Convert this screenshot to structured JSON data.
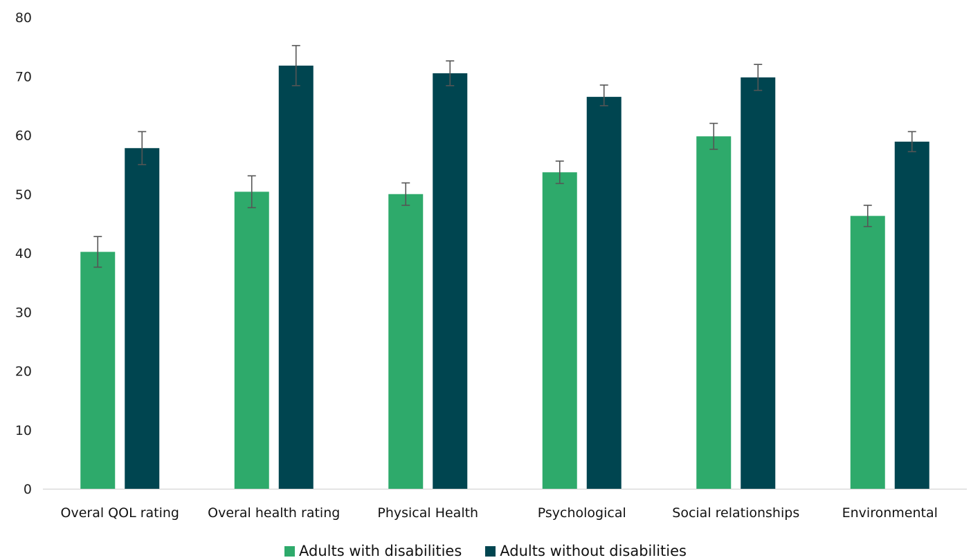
{
  "chart_data": {
    "type": "bar",
    "categories": [
      "Overal QOL rating",
      "Overal health rating",
      "Physical Health",
      "Psychological",
      "Social relationships",
      "Environmental"
    ],
    "series": [
      {
        "name": "Adults with disabilities",
        "color": "#2eaa6b",
        "values": [
          40.2,
          50.4,
          50.0,
          53.7,
          59.8,
          46.3
        ],
        "error_low": [
          37.6,
          47.7,
          48.1,
          51.8,
          57.6,
          44.5
        ],
        "error_high": [
          42.8,
          53.1,
          51.9,
          55.6,
          62.0,
          48.1
        ]
      },
      {
        "name": "Adults without disabilities",
        "color": "#004550",
        "values": [
          57.8,
          71.8,
          70.5,
          66.5,
          69.8,
          58.9
        ],
        "error_low": [
          55.0,
          68.4,
          68.4,
          65.0,
          67.6,
          57.2
        ],
        "error_high": [
          60.6,
          75.2,
          72.6,
          68.5,
          72.0,
          60.6
        ]
      }
    ],
    "ylim": [
      0,
      80
    ],
    "yticks": [
      "0",
      "10",
      "20",
      "30",
      "40",
      "50",
      "60",
      "70",
      "80"
    ],
    "gridlines": false,
    "legend_position": "bottom",
    "axis_color": "#d9d9d9",
    "error_bar_color": "#555555"
  }
}
